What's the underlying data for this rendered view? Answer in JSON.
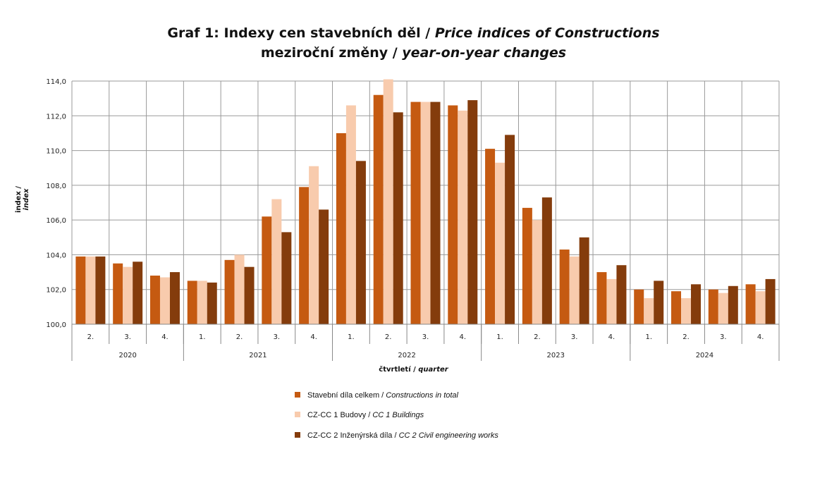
{
  "colors": {
    "series0": "#C55A11",
    "series1": "#F8CBAD",
    "series2": "#843C0C",
    "grid": "#9a9a9a"
  },
  "chart_data": {
    "type": "bar",
    "title_line1_main": "Graf 1: Indexy cen stavebních děl / ",
    "title_line1_italic": "Price indices of Constructions",
    "title_line2_main": "meziroční změny / ",
    "title_line2_italic": "year-on-year changes",
    "ylabel_main": "index / ",
    "ylabel_italic": "index",
    "xlabel_main": "čtvrtletí / ",
    "xlabel_italic": "quarter",
    "ylim": [
      100,
      114
    ],
    "yticks": [
      "100,0",
      "102,0",
      "104,0",
      "106,0",
      "108,0",
      "110,0",
      "112,0",
      "114,0"
    ],
    "categories": [
      "2.",
      "3.",
      "4.",
      "1.",
      "2.",
      "3.",
      "4.",
      "1.",
      "2.",
      "3.",
      "4.",
      "1.",
      "2.",
      "3.",
      "4.",
      "1.",
      "2.",
      "3.",
      "4."
    ],
    "groups": [
      {
        "label": "2020",
        "count": 3
      },
      {
        "label": "2021",
        "count": 4
      },
      {
        "label": "2022",
        "count": 4
      },
      {
        "label": "2023",
        "count": 4
      },
      {
        "label": "2024",
        "count": 4
      }
    ],
    "series": [
      {
        "name": "Stavební díla celkem / ",
        "name_italic": "Constructions in total",
        "values": [
          103.9,
          103.5,
          102.8,
          102.5,
          103.7,
          106.2,
          107.9,
          111.0,
          113.2,
          112.8,
          112.6,
          110.1,
          106.7,
          104.3,
          103.0,
          102.0,
          101.9,
          102.0,
          102.3
        ]
      },
      {
        "name": "CZ-CC 1 Budovy / ",
        "name_italic": "CC 1 Buildings",
        "values": [
          103.9,
          103.3,
          102.7,
          102.5,
          104.0,
          107.2,
          109.1,
          112.6,
          114.1,
          112.8,
          112.3,
          109.3,
          106.0,
          103.9,
          102.6,
          101.5,
          101.5,
          101.8,
          101.9
        ]
      },
      {
        "name": "CZ-CC 2 Inženýrská díla / ",
        "name_italic": "CC 2 Civil engineering works",
        "values": [
          103.9,
          103.6,
          103.0,
          102.4,
          103.3,
          105.3,
          106.6,
          109.4,
          112.2,
          112.8,
          112.9,
          110.9,
          107.3,
          105.0,
          103.4,
          102.5,
          102.3,
          102.2,
          102.6
        ]
      }
    ]
  }
}
